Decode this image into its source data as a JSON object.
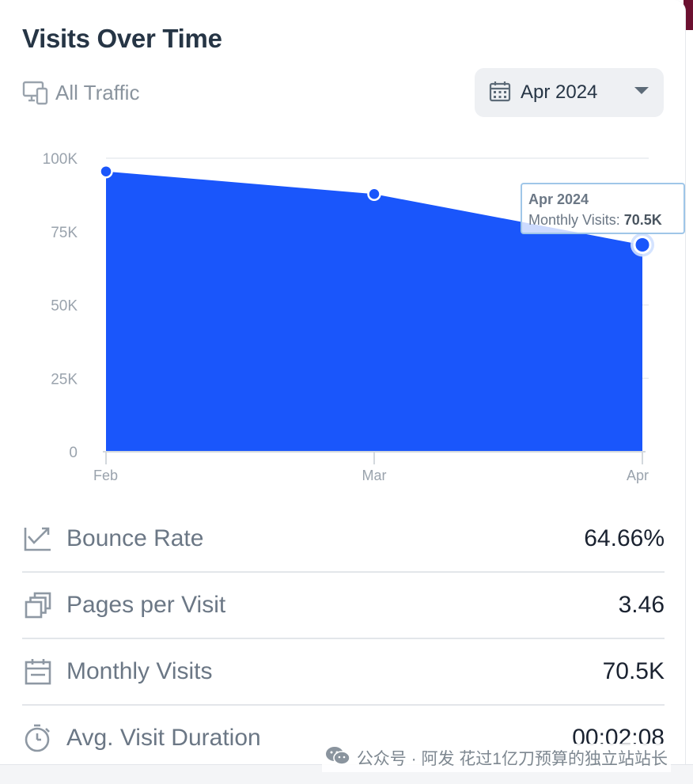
{
  "card": {
    "title": "Visits Over Time",
    "filter_label": "All Traffic",
    "date_select": "Apr 2024"
  },
  "tooltip": {
    "date": "Apr 2024",
    "label": "Monthly Visits:",
    "value": "70.5K"
  },
  "chart_data": {
    "type": "area",
    "categories": [
      "Feb",
      "Mar",
      "Apr"
    ],
    "series": [
      {
        "values": [
          95500,
          87800,
          70500
        ]
      }
    ],
    "y_ticks": [
      "100K",
      "75K",
      "50K",
      "25K",
      "0"
    ],
    "ylim": [
      0,
      100000
    ],
    "color": "#1a56fb",
    "highlighted_point": "Apr",
    "grid": true
  },
  "metrics": [
    {
      "icon": "bounce-rate-icon",
      "label": "Bounce Rate",
      "value": "64.66%"
    },
    {
      "icon": "pages-icon",
      "label": "Pages per Visit",
      "value": "3.46"
    },
    {
      "icon": "calendar-icon",
      "label": "Monthly Visits",
      "value": "70.5K"
    },
    {
      "icon": "stopwatch-icon",
      "label": "Avg. Visit Duration",
      "value": "00:02:08"
    }
  ],
  "watermark": "公众号 · 阿发 花过1亿刀预算的独立站站长"
}
